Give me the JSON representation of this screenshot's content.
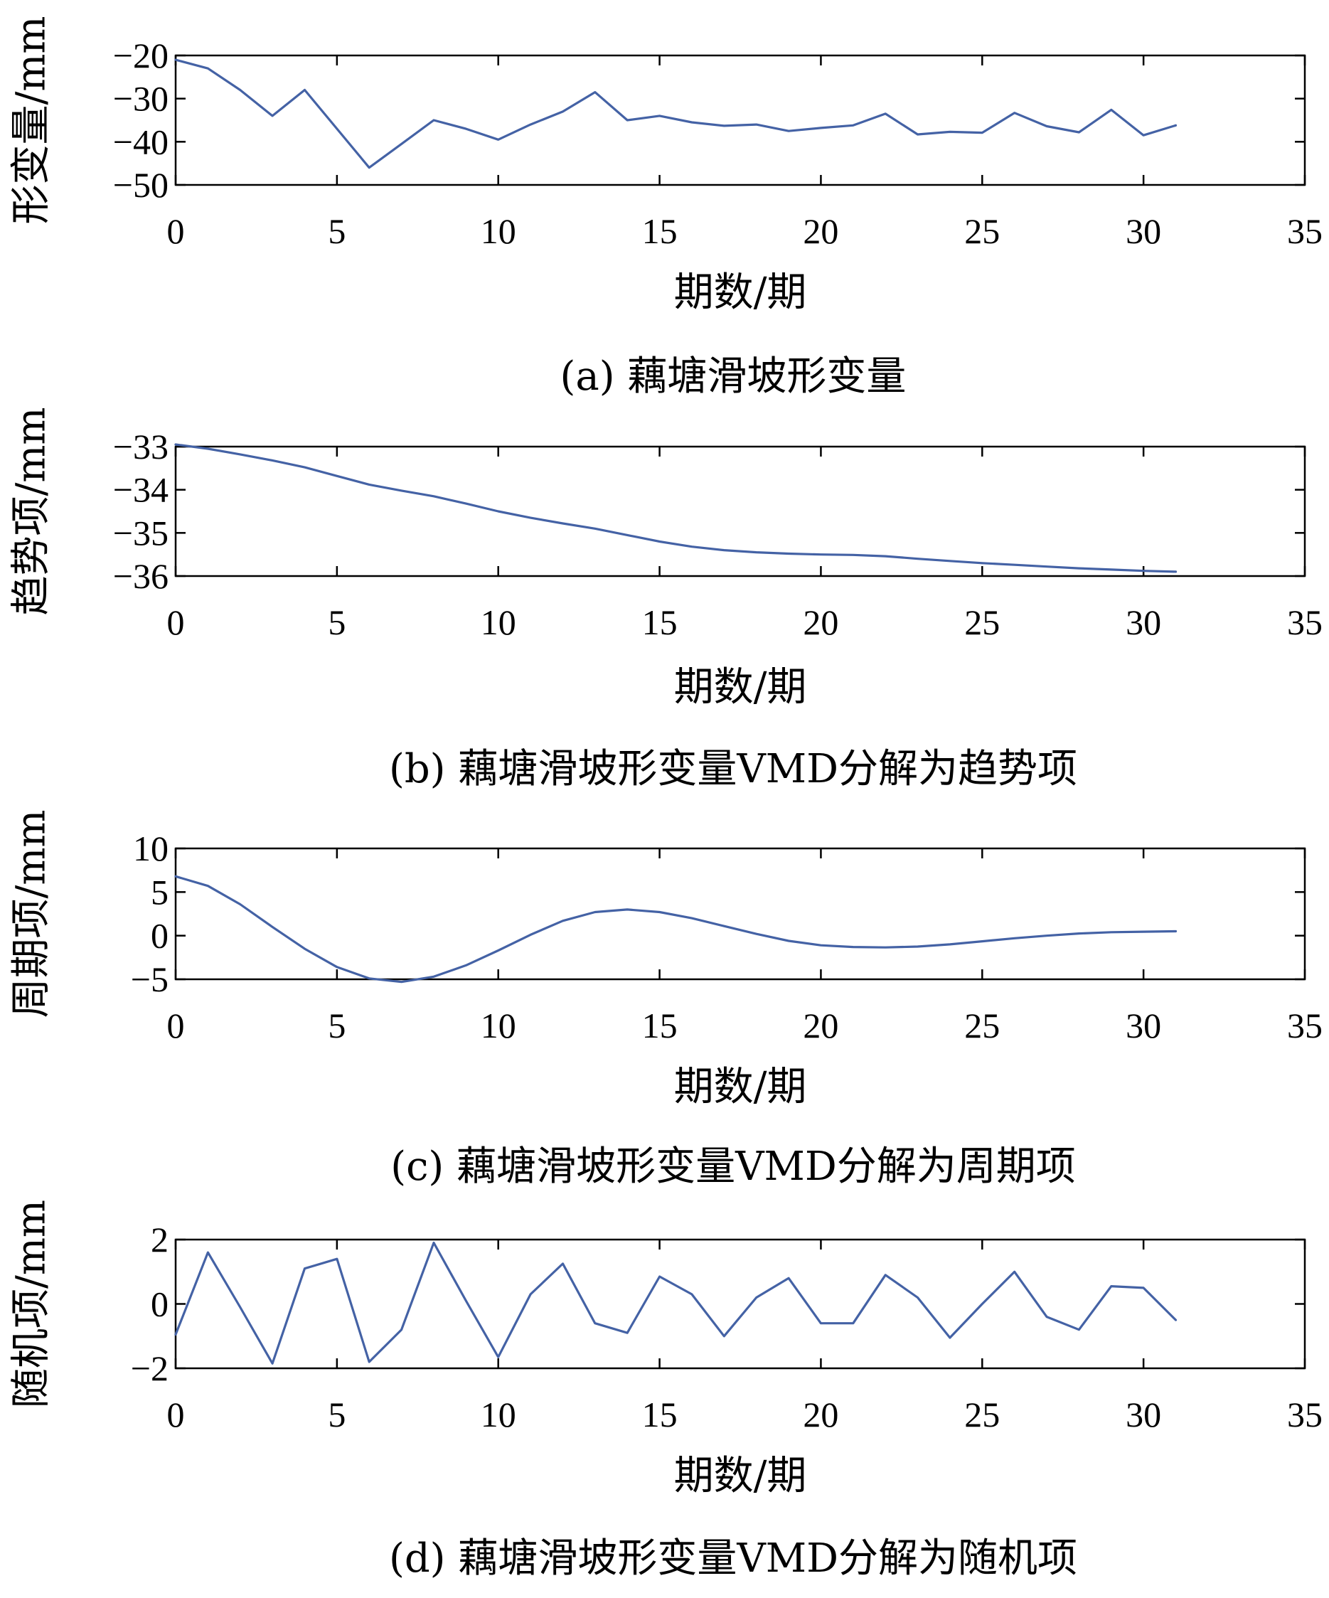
{
  "chart_data": [
    {
      "type": "line",
      "panel": "a",
      "caption": "(a) 藕塘滑坡形变量",
      "xlabel": "期数/期",
      "ylabel": "形变量/mm",
      "xlim": [
        0,
        35
      ],
      "ylim": [
        -50,
        -20
      ],
      "xticks": [
        0,
        5,
        10,
        15,
        20,
        25,
        30,
        35
      ],
      "yticks": [
        -20,
        -30,
        -40,
        -50
      ],
      "color": "#4462a5",
      "series": [
        {
          "x": [
            0,
            1,
            2,
            3,
            4,
            5,
            6,
            7,
            8,
            9,
            10,
            11,
            12,
            13,
            14,
            15,
            16,
            17,
            18,
            19,
            20,
            21,
            22,
            23,
            24,
            25,
            26,
            27,
            28,
            29,
            30,
            31
          ],
          "values": [
            -21,
            -23,
            -28,
            -34,
            -28,
            -37,
            -46,
            -40.5,
            -35,
            -37,
            -39.5,
            -36,
            -33,
            -28.5,
            -35,
            -34,
            -35.5,
            -36.3,
            -36,
            -37.5,
            -36.8,
            -36.2,
            -33.5,
            -38.3,
            -37.7,
            -37.9,
            -33.3,
            -36.4,
            -37.8,
            -32.6,
            -38.5,
            -36.2
          ]
        }
      ]
    },
    {
      "type": "line",
      "panel": "b",
      "caption": "(b) 藕塘滑坡形变量VMD分解为趋势项",
      "xlabel": "期数/期",
      "ylabel": "趋势项/mm",
      "xlim": [
        0,
        35
      ],
      "ylim": [
        -36,
        -33
      ],
      "xticks": [
        0,
        5,
        10,
        15,
        20,
        25,
        30,
        35
      ],
      "yticks": [
        -33,
        -34,
        -35,
        -36
      ],
      "color": "#4462a5",
      "series": [
        {
          "x": [
            0,
            1,
            2,
            3,
            4,
            5,
            6,
            7,
            8,
            9,
            10,
            11,
            12,
            13,
            14,
            15,
            16,
            17,
            18,
            19,
            20,
            21,
            22,
            23,
            24,
            25,
            26,
            27,
            28,
            29,
            30,
            31
          ],
          "values": [
            -32.95,
            -33.05,
            -33.18,
            -33.32,
            -33.48,
            -33.68,
            -33.88,
            -34.02,
            -34.15,
            -34.32,
            -34.5,
            -34.65,
            -34.78,
            -34.9,
            -35.05,
            -35.2,
            -35.32,
            -35.4,
            -35.45,
            -35.48,
            -35.5,
            -35.51,
            -35.54,
            -35.6,
            -35.65,
            -35.7,
            -35.74,
            -35.78,
            -35.82,
            -35.85,
            -35.88,
            -35.9
          ]
        }
      ]
    },
    {
      "type": "line",
      "panel": "c",
      "caption": "(c) 藕塘滑坡形变量VMD分解为周期项",
      "xlabel": "期数/期",
      "ylabel": "周期项/mm",
      "xlim": [
        0,
        35
      ],
      "ylim": [
        -5,
        10
      ],
      "xticks": [
        0,
        5,
        10,
        15,
        20,
        25,
        30,
        35
      ],
      "yticks": [
        10,
        5,
        0,
        -5
      ],
      "color": "#4462a5",
      "series": [
        {
          "x": [
            0,
            1,
            2,
            3,
            4,
            5,
            6,
            7,
            8,
            9,
            10,
            11,
            12,
            13,
            14,
            15,
            16,
            17,
            18,
            19,
            20,
            21,
            22,
            23,
            24,
            25,
            26,
            27,
            28,
            29,
            30,
            31
          ],
          "values": [
            6.8,
            5.7,
            3.6,
            1.0,
            -1.5,
            -3.6,
            -4.9,
            -5.3,
            -4.7,
            -3.4,
            -1.7,
            0.1,
            1.7,
            2.7,
            3.0,
            2.7,
            2.0,
            1.1,
            0.2,
            -0.6,
            -1.1,
            -1.3,
            -1.35,
            -1.25,
            -1.0,
            -0.65,
            -0.3,
            0.0,
            0.25,
            0.4,
            0.45,
            0.5
          ]
        }
      ]
    },
    {
      "type": "line",
      "panel": "d",
      "caption": "(d) 藕塘滑坡形变量VMD分解为随机项",
      "xlabel": "期数/期",
      "ylabel": "随机项/mm",
      "xlim": [
        0,
        35
      ],
      "ylim": [
        -2,
        2
      ],
      "xticks": [
        0,
        5,
        10,
        15,
        20,
        25,
        30,
        35
      ],
      "yticks": [
        2,
        0,
        -2
      ],
      "color": "#4462a5",
      "series": [
        {
          "x": [
            0,
            1,
            2,
            3,
            4,
            5,
            6,
            7,
            8,
            9,
            10,
            11,
            12,
            13,
            14,
            15,
            16,
            17,
            18,
            19,
            20,
            21,
            22,
            23,
            24,
            25,
            26,
            27,
            28,
            29,
            30,
            31
          ],
          "values": [
            -0.95,
            1.6,
            -0.1,
            -1.85,
            1.1,
            1.4,
            -1.8,
            -0.8,
            1.9,
            0.1,
            -1.65,
            0.3,
            1.25,
            -0.6,
            -0.9,
            0.85,
            0.3,
            -1.0,
            0.2,
            0.8,
            -0.6,
            -0.6,
            0.9,
            0.2,
            -1.05,
            0.0,
            1.0,
            -0.4,
            -0.8,
            0.55,
            0.5,
            -0.5
          ]
        }
      ]
    }
  ]
}
